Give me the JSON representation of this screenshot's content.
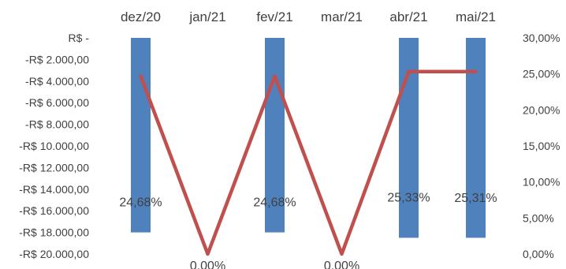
{
  "chart_data": {
    "type": "bar",
    "categories": [
      "dez/20",
      "jan/21",
      "fev/21",
      "mar/21",
      "abr/21",
      "mai/21"
    ],
    "series": [
      {
        "type": "bar",
        "axis": "left",
        "color": "#4F81BD",
        "values": [
          -18000,
          0,
          -18000,
          0,
          -18500,
          -18500
        ]
      },
      {
        "type": "line",
        "axis": "right",
        "color": "#C0504D",
        "values": [
          24.68,
          0.0,
          24.68,
          0.0,
          25.33,
          25.31
        ]
      }
    ],
    "data_labels": [
      "24,68%",
      "0,00%",
      "24,68%",
      "0,00%",
      "25,33%",
      "25,31%"
    ],
    "left_axis": {
      "ylim": [
        -20000,
        0
      ],
      "ticks": [
        "R$ -",
        "-R$ 2.000,00",
        "-R$ 4.000,00",
        "-R$ 6.000,00",
        "-R$ 8.000,00",
        "-R$ 10.000,00",
        "-R$ 12.000,00",
        "-R$ 14.000,00",
        "-R$ 16.000,00",
        "-R$ 18.000,00",
        "-R$ 20.000,00"
      ]
    },
    "right_axis": {
      "ylim": [
        0,
        30
      ],
      "ticks": [
        "30,00%",
        "25,00%",
        "20,00%",
        "15,00%",
        "10,00%",
        "5,00%",
        "0,00%"
      ]
    },
    "category_axis_position": "top",
    "grid": false,
    "legend": "none"
  }
}
